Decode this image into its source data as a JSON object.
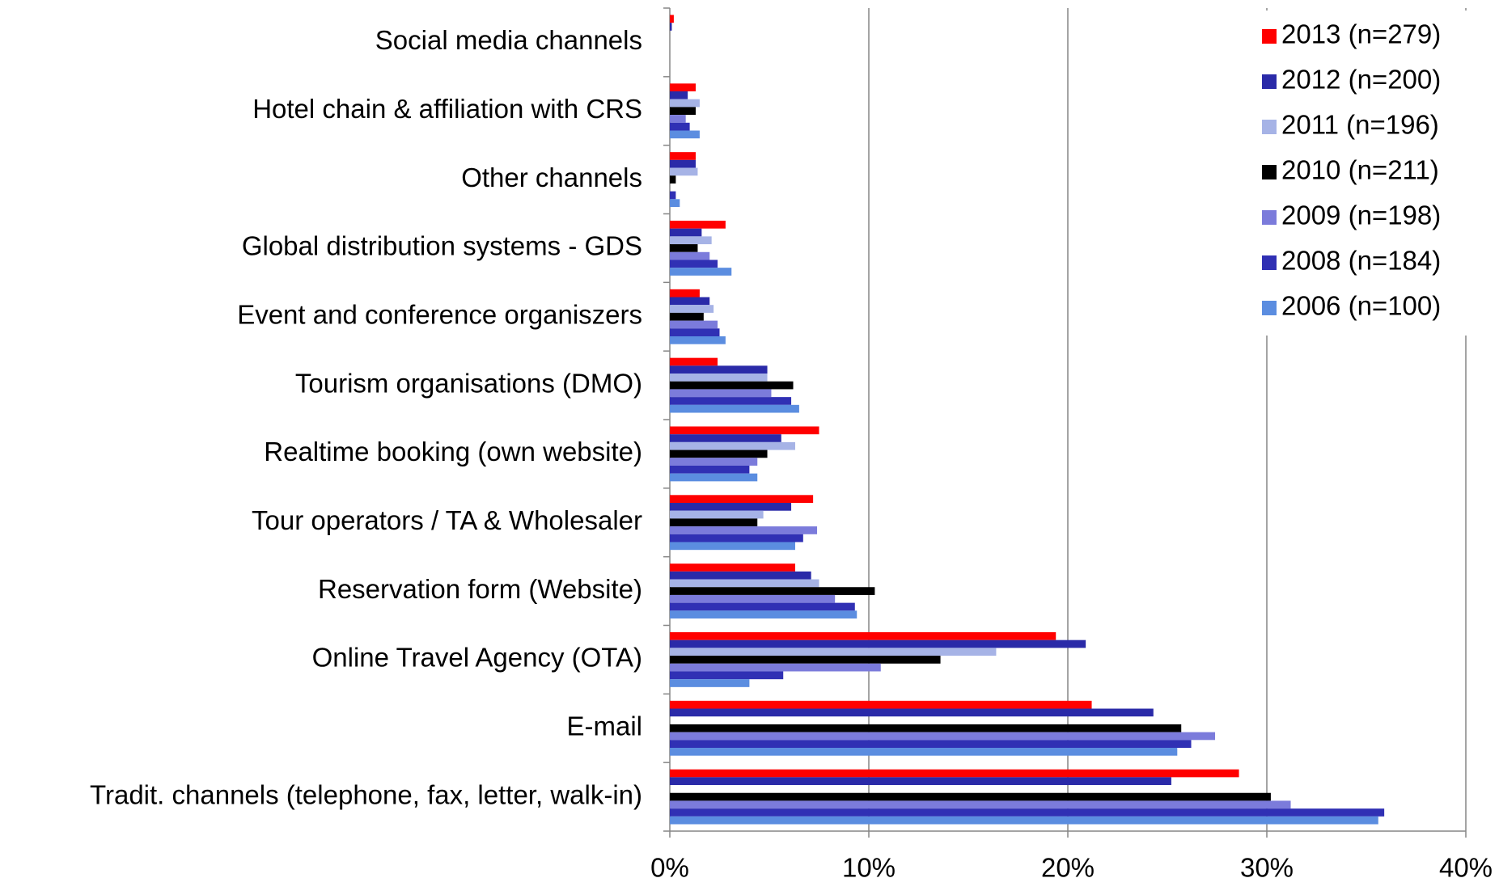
{
  "chart_data": {
    "type": "hbar",
    "categories": [
      "Social media channels",
      "Hotel chain & affiliation with CRS",
      "Other channels",
      "Global distribution systems - GDS",
      "Event and conference organiszers",
      "Tourism organisations (DMO)",
      "Realtime booking (own website)",
      "Tour operators / TA & Wholesaler",
      "Reservation form (Website)",
      "Online Travel Agency (OTA)",
      "E-mail",
      "Tradit. channels (telephone, fax, letter, walk-in)"
    ],
    "series": [
      {
        "name": "2013 (n=279)",
        "color": "#ff0000",
        "values": [
          0.2,
          1.3,
          1.3,
          2.8,
          1.5,
          2.4,
          7.5,
          7.2,
          6.3,
          19.4,
          21.2,
          28.6
        ]
      },
      {
        "name": "2012 (n=200)",
        "color": "#2a2aa8",
        "values": [
          0.1,
          0.9,
          1.3,
          1.6,
          2.0,
          4.9,
          5.6,
          6.1,
          7.1,
          20.9,
          24.3,
          25.2
        ]
      },
      {
        "name": "2011 (n=196)",
        "color": "#a6b3e6",
        "values": [
          0,
          1.5,
          1.4,
          2.1,
          2.2,
          4.9,
          6.3,
          4.7,
          7.5,
          16.4,
          0,
          0
        ]
      },
      {
        "name": "2010 (n=211)",
        "color": "#000000",
        "values": [
          0,
          1.3,
          0.3,
          1.4,
          1.7,
          6.2,
          4.9,
          4.4,
          10.3,
          13.6,
          25.7,
          30.2
        ]
      },
      {
        "name": "2009 (n=198)",
        "color": "#7b7bdb",
        "values": [
          0,
          0.8,
          0,
          2.0,
          2.4,
          5.1,
          4.4,
          7.4,
          8.3,
          10.6,
          27.4,
          31.2
        ]
      },
      {
        "name": "2008 (n=184)",
        "color": "#3030b4",
        "values": [
          0,
          1.0,
          0.3,
          2.4,
          2.5,
          6.1,
          4.0,
          6.7,
          9.3,
          5.7,
          26.2,
          35.9
        ]
      },
      {
        "name": "2006 (n=100)",
        "color": "#5b8de0",
        "values": [
          0,
          1.5,
          0.5,
          3.1,
          2.8,
          6.5,
          4.4,
          6.3,
          9.4,
          4.0,
          25.5,
          35.6
        ]
      }
    ],
    "xlim": [
      0,
      40
    ],
    "xticks": [
      {
        "value": 0,
        "label": "0%"
      },
      {
        "value": 10,
        "label": "10%"
      },
      {
        "value": 20,
        "label": "20%"
      },
      {
        "value": 30,
        "label": "30%"
      },
      {
        "value": 40,
        "label": "40%"
      }
    ],
    "grid": true,
    "legend": "top-right"
  }
}
